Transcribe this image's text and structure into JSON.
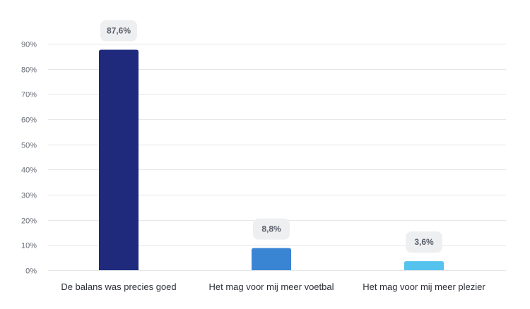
{
  "chart_data": {
    "type": "bar",
    "categories": [
      "De balans was precies goed",
      "Het mag voor mij meer voetbal",
      "Het mag voor mij meer plezier"
    ],
    "values": [
      87.6,
      8.8,
      3.6
    ],
    "data_labels": [
      "87,6%",
      "8,8%",
      "3,6%"
    ],
    "bar_colors": [
      "#1f2a7c",
      "#3a84d4",
      "#56c3ee"
    ],
    "title": "",
    "xlabel": "",
    "ylabel": "",
    "ylim": [
      0,
      90
    ],
    "yticks": [
      0,
      10,
      20,
      30,
      40,
      50,
      60,
      70,
      80,
      90
    ],
    "ytick_labels": [
      "0%",
      "10%",
      "20%",
      "30%",
      "40%",
      "50%",
      "60%",
      "70%",
      "80%",
      "90%"
    ],
    "grid": true,
    "legend": "none"
  }
}
